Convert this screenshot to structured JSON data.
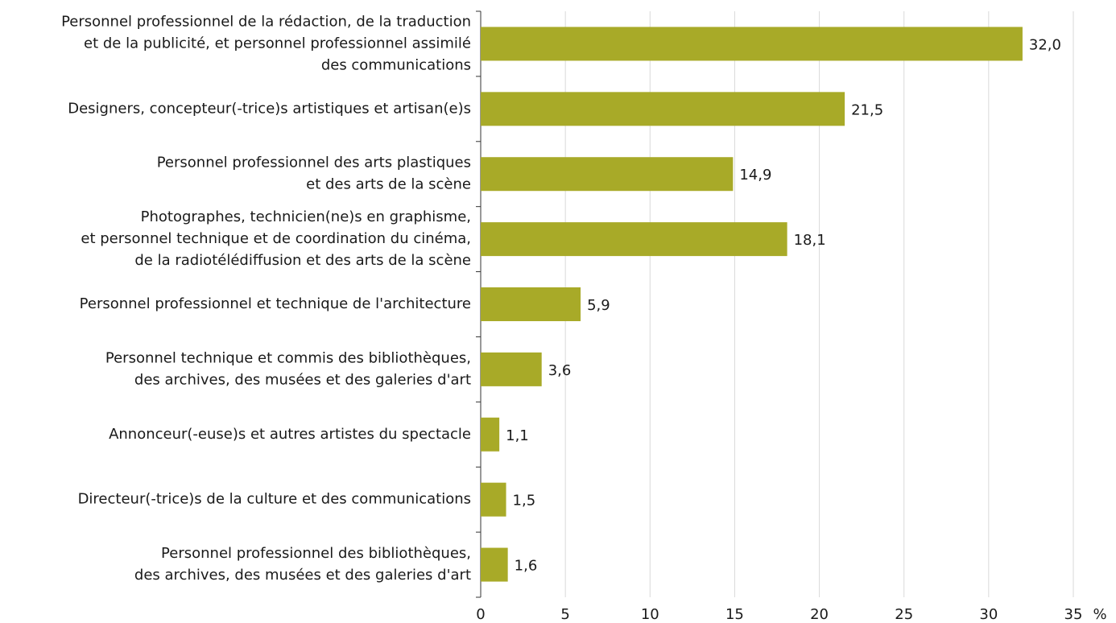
{
  "chart_data": {
    "type": "bar",
    "orientation": "horizontal",
    "categories": [
      [
        "Personnel professionnel de la rédaction, de la traduction",
        "et de la publicité, et personnel professionnel assimilé",
        "des communications"
      ],
      [
        "Designers, concepteur(-trice)s artistiques et artisan(e)s"
      ],
      [
        "Personnel professionnel des arts plastiques",
        "et des arts de la scène"
      ],
      [
        "Photographes, technicien(ne)s en graphisme,",
        "et personnel technique et de coordination du cinéma,",
        "de la radiotélédiffusion et des arts de la scène"
      ],
      [
        "Personnel professionnel et technique de l'architecture"
      ],
      [
        "Personnel technique et commis des bibliothèques,",
        "des archives, des musées et des galeries d'art"
      ],
      [
        "Annonceur(-euse)s et autres artistes du spectacle"
      ],
      [
        "Directeur(-trice)s de la culture et des communications"
      ],
      [
        "Personnel professionnel des bibliothèques,",
        "des archives, des musées et des galeries d'art"
      ]
    ],
    "values": [
      32.0,
      21.5,
      14.9,
      18.1,
      5.9,
      3.6,
      1.1,
      1.5,
      1.6
    ],
    "value_labels": [
      "32,0",
      "21,5",
      "14,9",
      "18,1",
      "5,9",
      "3,6",
      "1,1",
      "1,5",
      "1,6"
    ],
    "color": "#a8aa28",
    "xlabel": "%",
    "xlim": [
      0,
      35
    ],
    "xticks": [
      0,
      5,
      10,
      15,
      20,
      25,
      30,
      35
    ],
    "grid": true
  }
}
